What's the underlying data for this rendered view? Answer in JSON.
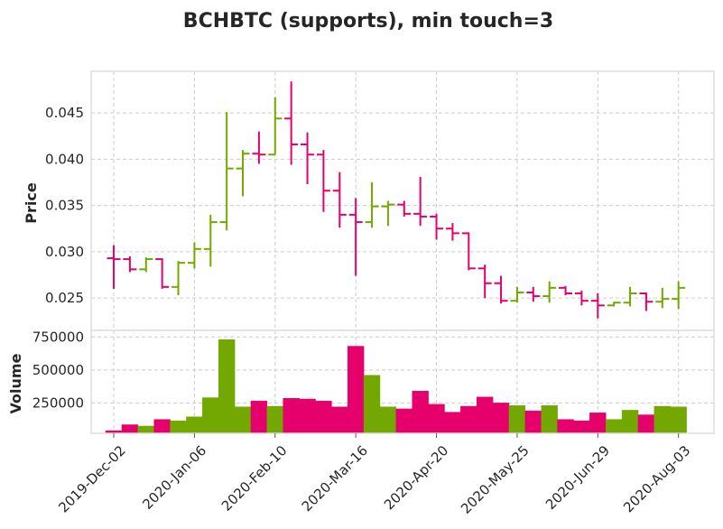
{
  "chart_data": {
    "type": "ohlc",
    "title": "BCHBTC (supports), min touch=3",
    "colors": {
      "up": "#72a800",
      "down": "#e6006b",
      "grid": "#cccccc"
    },
    "price_panel": {
      "ylabel": "Price",
      "ylim": [
        0.0215,
        0.0495
      ],
      "yticks": [
        0.025,
        0.03,
        0.035,
        0.04,
        0.045
      ],
      "ytick_labels": [
        "0.025",
        "0.030",
        "0.035",
        "0.040",
        "0.045"
      ]
    },
    "volume_panel": {
      "ylabel": "Volume",
      "ylim": [
        20000,
        800000
      ],
      "yticks": [
        250000,
        500000,
        750000
      ],
      "ytick_labels": [
        "250000",
        "500000",
        "750000"
      ]
    },
    "x_ticks": [
      {
        "label": "2019-Dec-02",
        "index": 0
      },
      {
        "label": "2020-Jan-06",
        "index": 5
      },
      {
        "label": "2020-Feb-10",
        "index": 10
      },
      {
        "label": "2020-Mar-16",
        "index": 15
      },
      {
        "label": "2020-Apr-20",
        "index": 20
      },
      {
        "label": "2020-May-25",
        "index": 25
      },
      {
        "label": "2020-Jun-29",
        "index": 30
      },
      {
        "label": "2020-Aug-03",
        "index": 35
      }
    ],
    "x_range": [
      -1.4,
      37.2
    ],
    "bars": [
      {
        "o": 0.0293,
        "h": 0.0307,
        "l": 0.026,
        "c": 0.0292,
        "v": 40000
      },
      {
        "o": 0.0292,
        "h": 0.0295,
        "l": 0.0278,
        "c": 0.0281,
        "v": 85000
      },
      {
        "o": 0.0281,
        "h": 0.0294,
        "l": 0.0278,
        "c": 0.0292,
        "v": 75000
      },
      {
        "o": 0.0292,
        "h": 0.0293,
        "l": 0.026,
        "c": 0.0262,
        "v": 125000
      },
      {
        "o": 0.0262,
        "h": 0.029,
        "l": 0.0253,
        "c": 0.0288,
        "v": 115000
      },
      {
        "o": 0.0288,
        "h": 0.031,
        "l": 0.0282,
        "c": 0.0303,
        "v": 145000
      },
      {
        "o": 0.0303,
        "h": 0.034,
        "l": 0.0284,
        "c": 0.0332,
        "v": 290000
      },
      {
        "o": 0.0332,
        "h": 0.0451,
        "l": 0.0323,
        "c": 0.039,
        "v": 730000
      },
      {
        "o": 0.039,
        "h": 0.041,
        "l": 0.036,
        "c": 0.0406,
        "v": 220000
      },
      {
        "o": 0.0406,
        "h": 0.043,
        "l": 0.0395,
        "c": 0.0405,
        "v": 265000
      },
      {
        "o": 0.0405,
        "h": 0.0467,
        "l": 0.0405,
        "c": 0.0444,
        "v": 225000
      },
      {
        "o": 0.0444,
        "h": 0.0484,
        "l": 0.0394,
        "c": 0.0416,
        "v": 285000
      },
      {
        "o": 0.0416,
        "h": 0.0429,
        "l": 0.0373,
        "c": 0.0405,
        "v": 280000
      },
      {
        "o": 0.0405,
        "h": 0.041,
        "l": 0.0343,
        "c": 0.0366,
        "v": 265000
      },
      {
        "o": 0.0366,
        "h": 0.0386,
        "l": 0.0326,
        "c": 0.034,
        "v": 220000
      },
      {
        "o": 0.034,
        "h": 0.0358,
        "l": 0.0274,
        "c": 0.0332,
        "v": 680000
      },
      {
        "o": 0.0332,
        "h": 0.0375,
        "l": 0.0326,
        "c": 0.0349,
        "v": 460000
      },
      {
        "o": 0.0349,
        "h": 0.0355,
        "l": 0.0328,
        "c": 0.0351,
        "v": 220000
      },
      {
        "o": 0.0351,
        "h": 0.0355,
        "l": 0.0338,
        "c": 0.0341,
        "v": 205000
      },
      {
        "o": 0.0341,
        "h": 0.0381,
        "l": 0.0328,
        "c": 0.0338,
        "v": 340000
      },
      {
        "o": 0.0338,
        "h": 0.0341,
        "l": 0.0313,
        "c": 0.0325,
        "v": 240000
      },
      {
        "o": 0.0325,
        "h": 0.0331,
        "l": 0.0312,
        "c": 0.032,
        "v": 180000
      },
      {
        "o": 0.032,
        "h": 0.0321,
        "l": 0.028,
        "c": 0.0282,
        "v": 225000
      },
      {
        "o": 0.0282,
        "h": 0.0286,
        "l": 0.025,
        "c": 0.0266,
        "v": 295000
      },
      {
        "o": 0.0266,
        "h": 0.0274,
        "l": 0.0244,
        "c": 0.0247,
        "v": 250000
      },
      {
        "o": 0.0247,
        "h": 0.0262,
        "l": 0.0245,
        "c": 0.0256,
        "v": 230000
      },
      {
        "o": 0.0256,
        "h": 0.0262,
        "l": 0.0246,
        "c": 0.0252,
        "v": 190000
      },
      {
        "o": 0.0252,
        "h": 0.0268,
        "l": 0.0245,
        "c": 0.0261,
        "v": 230000
      },
      {
        "o": 0.0261,
        "h": 0.0263,
        "l": 0.0253,
        "c": 0.0255,
        "v": 125000
      },
      {
        "o": 0.0255,
        "h": 0.0258,
        "l": 0.0242,
        "c": 0.0247,
        "v": 115000
      },
      {
        "o": 0.0247,
        "h": 0.0255,
        "l": 0.0228,
        "c": 0.0242,
        "v": 175000
      },
      {
        "o": 0.0242,
        "h": 0.0246,
        "l": 0.0241,
        "c": 0.0245,
        "v": 125000
      },
      {
        "o": 0.0245,
        "h": 0.0262,
        "l": 0.0241,
        "c": 0.0255,
        "v": 195000
      },
      {
        "o": 0.0255,
        "h": 0.0256,
        "l": 0.0236,
        "c": 0.0246,
        "v": 160000
      },
      {
        "o": 0.0246,
        "h": 0.0261,
        "l": 0.0239,
        "c": 0.0249,
        "v": 225000
      },
      {
        "o": 0.0249,
        "h": 0.0268,
        "l": 0.0238,
        "c": 0.0261,
        "v": 220000
      }
    ]
  }
}
